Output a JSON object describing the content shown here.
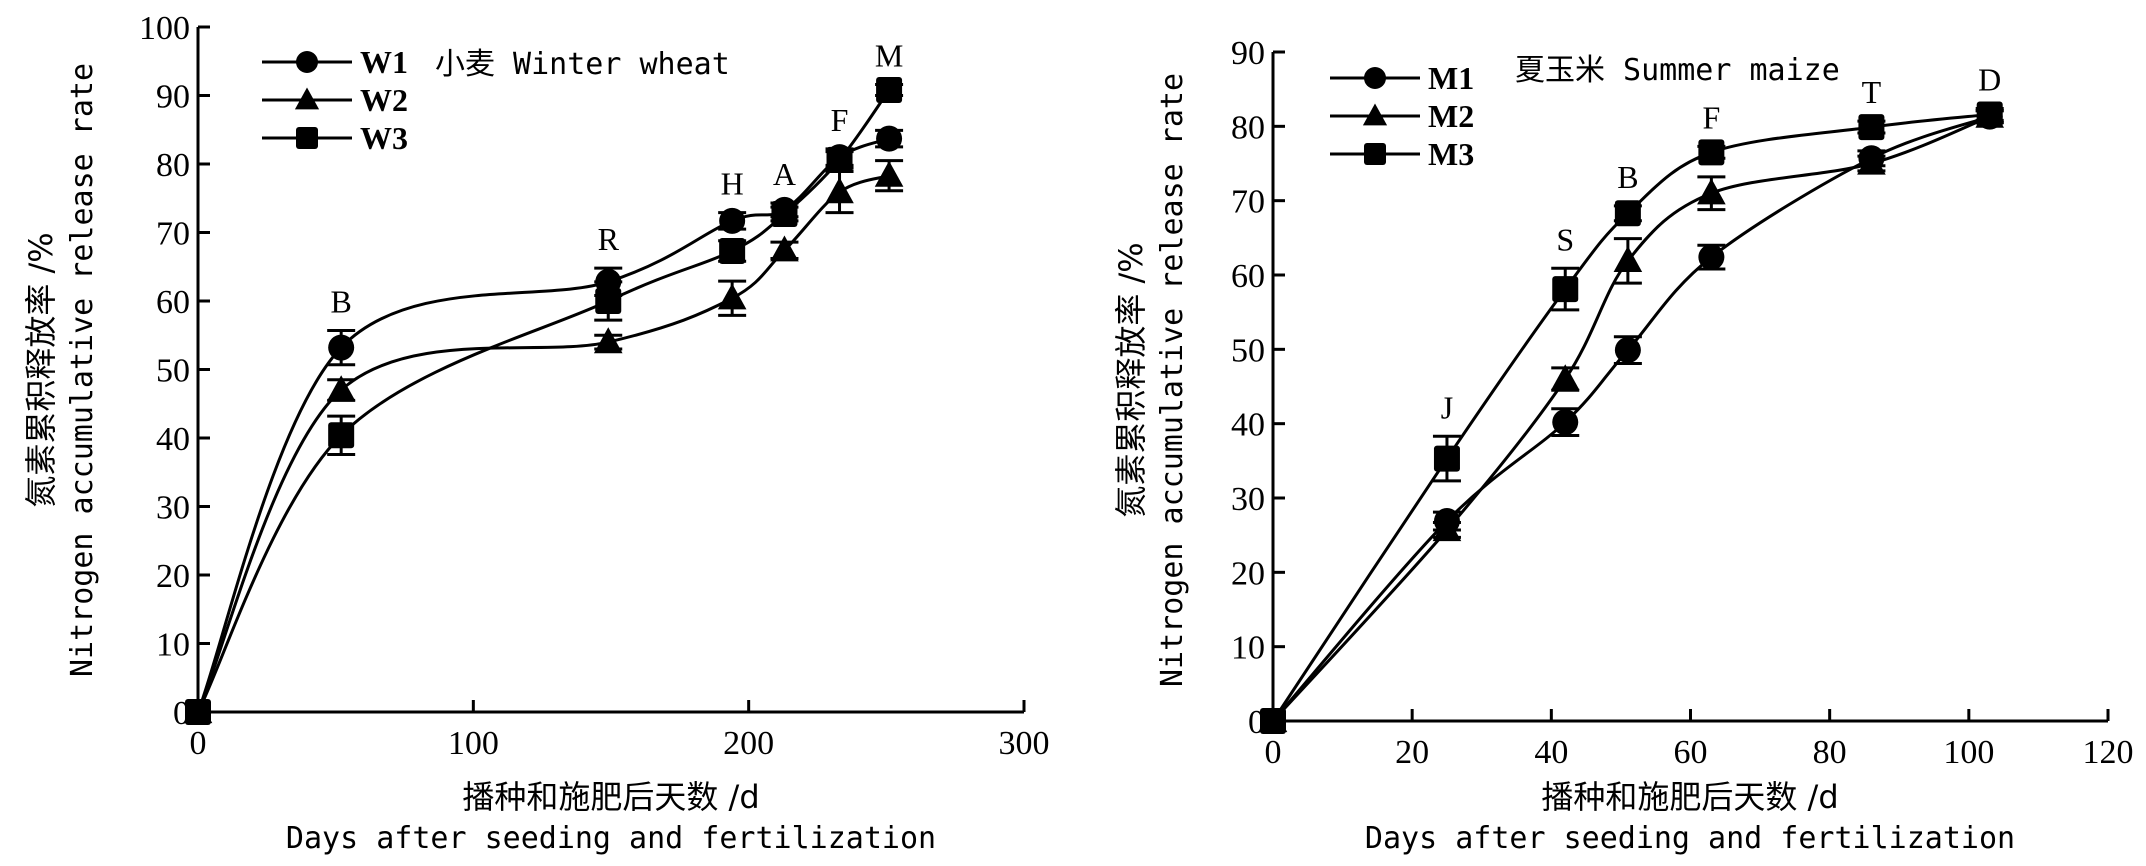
{
  "chart_data": [
    {
      "type": "line",
      "title": "小麦 Winter wheat",
      "xlabel": "播种和施肥后天数 /d",
      "xlabel_en": "Days after seeding and fertilization",
      "ylabel": "氮素累积释放率 /%",
      "ylabel_en": "Nitrogen accumulative release rate",
      "xlim": [
        0,
        300
      ],
      "ylim": [
        0,
        100
      ],
      "xticks": [
        0,
        100,
        200,
        300
      ],
      "yticks": [
        0,
        10,
        20,
        30,
        40,
        50,
        60,
        70,
        80,
        90,
        100
      ],
      "grid": false,
      "legend_position": "top-left",
      "stage_labels": [
        {
          "x": 52,
          "label": "B"
        },
        {
          "x": 149,
          "label": "R"
        },
        {
          "x": 194,
          "label": "H"
        },
        {
          "x": 213,
          "label": "A"
        },
        {
          "x": 233,
          "label": "F"
        },
        {
          "x": 251,
          "label": "M"
        }
      ],
      "x": [
        0,
        52,
        149,
        194,
        213,
        233,
        251
      ],
      "series": [
        {
          "name": "W1",
          "marker": "circle",
          "values": [
            0,
            53.2,
            62.8,
            71.7,
            73.3,
            81.0,
            83.7
          ],
          "errors": [
            0,
            2.5,
            2.0,
            1.2,
            1.0,
            1.2,
            1.2
          ]
        },
        {
          "name": "W2",
          "marker": "triangle",
          "values": [
            0,
            47.0,
            54.0,
            60.4,
            67.4,
            75.9,
            78.3
          ],
          "errors": [
            0,
            1.5,
            1.0,
            2.5,
            1.2,
            3.0,
            2.2
          ]
        },
        {
          "name": "W3",
          "marker": "square",
          "values": [
            0,
            40.4,
            60.0,
            67.3,
            72.7,
            80.6,
            90.8
          ],
          "errors": [
            0,
            2.8,
            2.8,
            1.5,
            1.0,
            1.2,
            0.8
          ]
        }
      ]
    },
    {
      "type": "line",
      "title": "夏玉米 Summer maize",
      "xlabel": "播种和施肥后天数 /d",
      "xlabel_en": "Days after seeding and fertilization",
      "ylabel": "氮素累积释放率 /%",
      "ylabel_en": "Nitrogen accumulative release rate",
      "xlim": [
        0,
        120
      ],
      "ylim": [
        0,
        90
      ],
      "xticks": [
        0,
        20,
        40,
        60,
        80,
        100,
        120
      ],
      "yticks": [
        0,
        10,
        20,
        30,
        40,
        50,
        60,
        70,
        80,
        90
      ],
      "grid": false,
      "legend_position": "top-left",
      "stage_labels": [
        {
          "x": 25,
          "label": "J"
        },
        {
          "x": 42,
          "label": "S"
        },
        {
          "x": 51,
          "label": "B"
        },
        {
          "x": 63,
          "label": "F"
        },
        {
          "x": 86,
          "label": "T"
        },
        {
          "x": 103,
          "label": "D"
        }
      ],
      "x": [
        0,
        25,
        42,
        51,
        63,
        86,
        103
      ],
      "series": [
        {
          "name": "M1",
          "marker": "circle",
          "values": [
            0,
            26.9,
            40.2,
            49.9,
            62.4,
            75.7,
            81.3
          ],
          "errors": [
            0,
            1.2,
            1.8,
            1.8,
            1.6,
            1.0,
            0.8
          ]
        },
        {
          "name": "M2",
          "marker": "triangle",
          "values": [
            0,
            25.7,
            46.0,
            61.9,
            71.0,
            75.0,
            81.3
          ],
          "errors": [
            0,
            1.0,
            1.5,
            3.0,
            2.2,
            1.0,
            0.8
          ]
        },
        {
          "name": "M3",
          "marker": "square",
          "values": [
            0,
            35.3,
            58.1,
            68.3,
            76.5,
            79.9,
            81.6
          ],
          "errors": [
            0,
            3.0,
            2.8,
            1.0,
            0.8,
            0.8,
            0.8
          ]
        }
      ]
    }
  ]
}
